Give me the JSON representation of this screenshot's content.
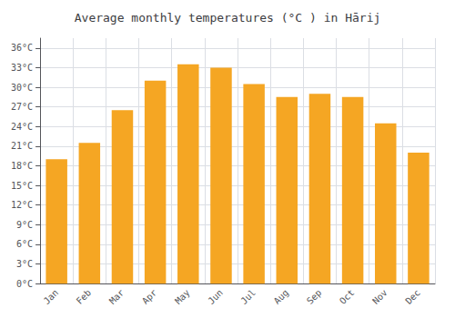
{
  "chart_data": {
    "type": "bar",
    "title": "Average monthly temperatures (°C ) in Hārij",
    "categories": [
      "Jan",
      "Feb",
      "Mar",
      "Apr",
      "May",
      "Jun",
      "Jul",
      "Aug",
      "Sep",
      "Oct",
      "Nov",
      "Dec"
    ],
    "values": [
      19.0,
      21.5,
      26.5,
      31.0,
      33.5,
      33.0,
      30.5,
      28.5,
      29.0,
      28.5,
      24.5,
      20.0
    ],
    "color": "#F5A623",
    "ylim": [
      0,
      37.5
    ],
    "yticks": [
      {
        "value": 0,
        "label": "0°C"
      },
      {
        "value": 3,
        "label": "3°C"
      },
      {
        "value": 6,
        "label": "6°C"
      },
      {
        "value": 9,
        "label": "9°C"
      },
      {
        "value": 12,
        "label": "12°C"
      },
      {
        "value": 15,
        "label": "15°C"
      },
      {
        "value": 18,
        "label": "18°C"
      },
      {
        "value": 21,
        "label": "21°C"
      },
      {
        "value": 24,
        "label": "24°C"
      },
      {
        "value": 27,
        "label": "27°C"
      },
      {
        "value": 30,
        "label": "30°C"
      },
      {
        "value": 33,
        "label": "33°C"
      },
      {
        "value": 36,
        "label": "36°C"
      }
    ],
    "grid": true
  }
}
